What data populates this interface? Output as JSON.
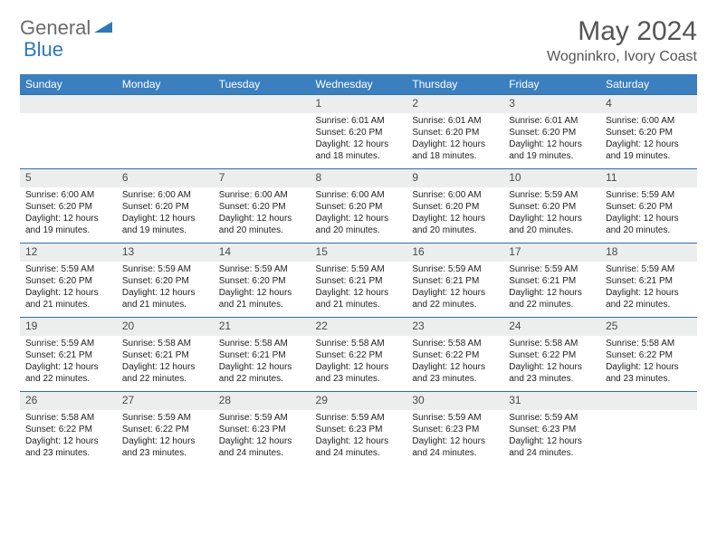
{
  "logo": {
    "text1": "General",
    "text2": "Blue"
  },
  "title": "May 2024",
  "location": "Wogninkro, Ivory Coast",
  "theme": {
    "header_bg": "#3b7fbf",
    "daynum_bg": "#eceded",
    "border": "#2f6ea8"
  },
  "day_headers": [
    "Sunday",
    "Monday",
    "Tuesday",
    "Wednesday",
    "Thursday",
    "Friday",
    "Saturday"
  ],
  "weeks": [
    [
      {
        "num": "",
        "lines": [
          "",
          "",
          "",
          ""
        ]
      },
      {
        "num": "",
        "lines": [
          "",
          "",
          "",
          ""
        ]
      },
      {
        "num": "",
        "lines": [
          "",
          "",
          "",
          ""
        ]
      },
      {
        "num": "1",
        "lines": [
          "Sunrise: 6:01 AM",
          "Sunset: 6:20 PM",
          "Daylight: 12 hours",
          "and 18 minutes."
        ]
      },
      {
        "num": "2",
        "lines": [
          "Sunrise: 6:01 AM",
          "Sunset: 6:20 PM",
          "Daylight: 12 hours",
          "and 18 minutes."
        ]
      },
      {
        "num": "3",
        "lines": [
          "Sunrise: 6:01 AM",
          "Sunset: 6:20 PM",
          "Daylight: 12 hours",
          "and 19 minutes."
        ]
      },
      {
        "num": "4",
        "lines": [
          "Sunrise: 6:00 AM",
          "Sunset: 6:20 PM",
          "Daylight: 12 hours",
          "and 19 minutes."
        ]
      }
    ],
    [
      {
        "num": "5",
        "lines": [
          "Sunrise: 6:00 AM",
          "Sunset: 6:20 PM",
          "Daylight: 12 hours",
          "and 19 minutes."
        ]
      },
      {
        "num": "6",
        "lines": [
          "Sunrise: 6:00 AM",
          "Sunset: 6:20 PM",
          "Daylight: 12 hours",
          "and 19 minutes."
        ]
      },
      {
        "num": "7",
        "lines": [
          "Sunrise: 6:00 AM",
          "Sunset: 6:20 PM",
          "Daylight: 12 hours",
          "and 20 minutes."
        ]
      },
      {
        "num": "8",
        "lines": [
          "Sunrise: 6:00 AM",
          "Sunset: 6:20 PM",
          "Daylight: 12 hours",
          "and 20 minutes."
        ]
      },
      {
        "num": "9",
        "lines": [
          "Sunrise: 6:00 AM",
          "Sunset: 6:20 PM",
          "Daylight: 12 hours",
          "and 20 minutes."
        ]
      },
      {
        "num": "10",
        "lines": [
          "Sunrise: 5:59 AM",
          "Sunset: 6:20 PM",
          "Daylight: 12 hours",
          "and 20 minutes."
        ]
      },
      {
        "num": "11",
        "lines": [
          "Sunrise: 5:59 AM",
          "Sunset: 6:20 PM",
          "Daylight: 12 hours",
          "and 20 minutes."
        ]
      }
    ],
    [
      {
        "num": "12",
        "lines": [
          "Sunrise: 5:59 AM",
          "Sunset: 6:20 PM",
          "Daylight: 12 hours",
          "and 21 minutes."
        ]
      },
      {
        "num": "13",
        "lines": [
          "Sunrise: 5:59 AM",
          "Sunset: 6:20 PM",
          "Daylight: 12 hours",
          "and 21 minutes."
        ]
      },
      {
        "num": "14",
        "lines": [
          "Sunrise: 5:59 AM",
          "Sunset: 6:20 PM",
          "Daylight: 12 hours",
          "and 21 minutes."
        ]
      },
      {
        "num": "15",
        "lines": [
          "Sunrise: 5:59 AM",
          "Sunset: 6:21 PM",
          "Daylight: 12 hours",
          "and 21 minutes."
        ]
      },
      {
        "num": "16",
        "lines": [
          "Sunrise: 5:59 AM",
          "Sunset: 6:21 PM",
          "Daylight: 12 hours",
          "and 22 minutes."
        ]
      },
      {
        "num": "17",
        "lines": [
          "Sunrise: 5:59 AM",
          "Sunset: 6:21 PM",
          "Daylight: 12 hours",
          "and 22 minutes."
        ]
      },
      {
        "num": "18",
        "lines": [
          "Sunrise: 5:59 AM",
          "Sunset: 6:21 PM",
          "Daylight: 12 hours",
          "and 22 minutes."
        ]
      }
    ],
    [
      {
        "num": "19",
        "lines": [
          "Sunrise: 5:59 AM",
          "Sunset: 6:21 PM",
          "Daylight: 12 hours",
          "and 22 minutes."
        ]
      },
      {
        "num": "20",
        "lines": [
          "Sunrise: 5:58 AM",
          "Sunset: 6:21 PM",
          "Daylight: 12 hours",
          "and 22 minutes."
        ]
      },
      {
        "num": "21",
        "lines": [
          "Sunrise: 5:58 AM",
          "Sunset: 6:21 PM",
          "Daylight: 12 hours",
          "and 22 minutes."
        ]
      },
      {
        "num": "22",
        "lines": [
          "Sunrise: 5:58 AM",
          "Sunset: 6:22 PM",
          "Daylight: 12 hours",
          "and 23 minutes."
        ]
      },
      {
        "num": "23",
        "lines": [
          "Sunrise: 5:58 AM",
          "Sunset: 6:22 PM",
          "Daylight: 12 hours",
          "and 23 minutes."
        ]
      },
      {
        "num": "24",
        "lines": [
          "Sunrise: 5:58 AM",
          "Sunset: 6:22 PM",
          "Daylight: 12 hours",
          "and 23 minutes."
        ]
      },
      {
        "num": "25",
        "lines": [
          "Sunrise: 5:58 AM",
          "Sunset: 6:22 PM",
          "Daylight: 12 hours",
          "and 23 minutes."
        ]
      }
    ],
    [
      {
        "num": "26",
        "lines": [
          "Sunrise: 5:58 AM",
          "Sunset: 6:22 PM",
          "Daylight: 12 hours",
          "and 23 minutes."
        ]
      },
      {
        "num": "27",
        "lines": [
          "Sunrise: 5:59 AM",
          "Sunset: 6:22 PM",
          "Daylight: 12 hours",
          "and 23 minutes."
        ]
      },
      {
        "num": "28",
        "lines": [
          "Sunrise: 5:59 AM",
          "Sunset: 6:23 PM",
          "Daylight: 12 hours",
          "and 24 minutes."
        ]
      },
      {
        "num": "29",
        "lines": [
          "Sunrise: 5:59 AM",
          "Sunset: 6:23 PM",
          "Daylight: 12 hours",
          "and 24 minutes."
        ]
      },
      {
        "num": "30",
        "lines": [
          "Sunrise: 5:59 AM",
          "Sunset: 6:23 PM",
          "Daylight: 12 hours",
          "and 24 minutes."
        ]
      },
      {
        "num": "31",
        "lines": [
          "Sunrise: 5:59 AM",
          "Sunset: 6:23 PM",
          "Daylight: 12 hours",
          "and 24 minutes."
        ]
      },
      {
        "num": "",
        "lines": [
          "",
          "",
          "",
          ""
        ]
      }
    ]
  ]
}
